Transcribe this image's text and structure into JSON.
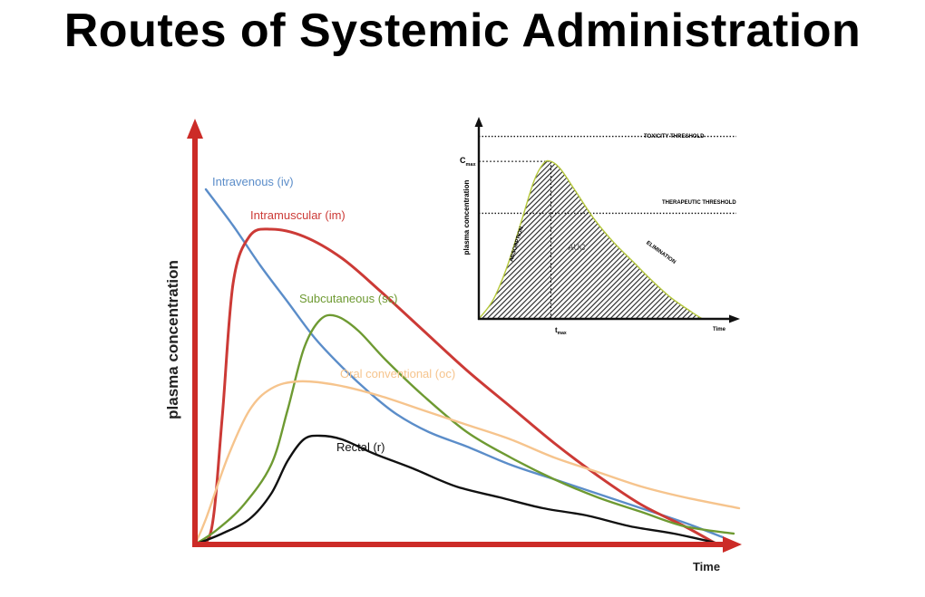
{
  "title": "Routes of Systemic Administration",
  "chart_data": [
    {
      "type": "line",
      "xlabel": "Time",
      "ylabel": "plasma concentration",
      "axis_color": "#cc2b27",
      "series": [
        {
          "name": "Intravenous (iv)",
          "color": "#5b8dc9",
          "points": [
            [
              0.02,
              0.98
            ],
            [
              0.07,
              0.88
            ],
            [
              0.12,
              0.77
            ],
            [
              0.17,
              0.67
            ],
            [
              0.22,
              0.57
            ],
            [
              0.27,
              0.49
            ],
            [
              0.32,
              0.42
            ],
            [
              0.37,
              0.36
            ],
            [
              0.43,
              0.31
            ],
            [
              0.5,
              0.27
            ],
            [
              0.58,
              0.22
            ],
            [
              0.66,
              0.18
            ],
            [
              0.74,
              0.14
            ],
            [
              0.82,
              0.1
            ],
            [
              0.9,
              0.06
            ],
            [
              0.97,
              0.02
            ]
          ]
        },
        {
          "name": "Intramuscular (im)",
          "color": "#cc3a36",
          "points": [
            [
              0.0,
              0.0
            ],
            [
              0.03,
              0.04
            ],
            [
              0.05,
              0.35
            ],
            [
              0.07,
              0.72
            ],
            [
              0.1,
              0.85
            ],
            [
              0.14,
              0.87
            ],
            [
              0.2,
              0.85
            ],
            [
              0.27,
              0.79
            ],
            [
              0.34,
              0.7
            ],
            [
              0.42,
              0.59
            ],
            [
              0.5,
              0.48
            ],
            [
              0.58,
              0.38
            ],
            [
              0.66,
              0.28
            ],
            [
              0.74,
              0.19
            ],
            [
              0.82,
              0.11
            ],
            [
              0.9,
              0.05
            ],
            [
              0.96,
              0.0
            ]
          ]
        },
        {
          "name": "Subcutaneous (sc)",
          "color": "#6e9a32",
          "points": [
            [
              0.0,
              0.0
            ],
            [
              0.04,
              0.04
            ],
            [
              0.09,
              0.11
            ],
            [
              0.14,
              0.22
            ],
            [
              0.17,
              0.37
            ],
            [
              0.2,
              0.54
            ],
            [
              0.23,
              0.62
            ],
            [
              0.26,
              0.63
            ],
            [
              0.3,
              0.59
            ],
            [
              0.35,
              0.51
            ],
            [
              0.42,
              0.41
            ],
            [
              0.5,
              0.31
            ],
            [
              0.58,
              0.24
            ],
            [
              0.66,
              0.18
            ],
            [
              0.74,
              0.13
            ],
            [
              0.82,
              0.09
            ],
            [
              0.9,
              0.05
            ],
            [
              0.99,
              0.03
            ]
          ]
        },
        {
          "name": "Oral conventional (oc)",
          "color": "#f6c48d",
          "points": [
            [
              0.0,
              0.0
            ],
            [
              0.02,
              0.07
            ],
            [
              0.06,
              0.24
            ],
            [
              0.1,
              0.37
            ],
            [
              0.14,
              0.43
            ],
            [
              0.19,
              0.45
            ],
            [
              0.26,
              0.44
            ],
            [
              0.34,
              0.41
            ],
            [
              0.42,
              0.37
            ],
            [
              0.5,
              0.33
            ],
            [
              0.58,
              0.29
            ],
            [
              0.66,
              0.24
            ],
            [
              0.74,
              0.2
            ],
            [
              0.82,
              0.16
            ],
            [
              0.9,
              0.13
            ],
            [
              1.0,
              0.1
            ]
          ]
        },
        {
          "name": "Rectal (r)",
          "color": "#111111",
          "points": [
            [
              0.0,
              0.0
            ],
            [
              0.05,
              0.03
            ],
            [
              0.1,
              0.07
            ],
            [
              0.14,
              0.14
            ],
            [
              0.17,
              0.23
            ],
            [
              0.2,
              0.29
            ],
            [
              0.23,
              0.3
            ],
            [
              0.27,
              0.29
            ],
            [
              0.33,
              0.25
            ],
            [
              0.4,
              0.21
            ],
            [
              0.48,
              0.16
            ],
            [
              0.56,
              0.13
            ],
            [
              0.64,
              0.1
            ],
            [
              0.72,
              0.08
            ],
            [
              0.8,
              0.05
            ],
            [
              0.88,
              0.03
            ],
            [
              0.97,
              0.0
            ]
          ]
        }
      ]
    },
    {
      "type": "area",
      "xlabel": "Time",
      "ylabel": "plasma concentration",
      "xtick_label": "t_max",
      "ytick_label": "C_max",
      "thresholds": [
        {
          "name": "TOXICITY THRESHOLD",
          "y": 0.95
        },
        {
          "name": "THERAPEUTIC THRESHOLD",
          "y": 0.55
        }
      ],
      "annotations": [
        "ABSORPTION",
        "AUC",
        "ELIMINATION"
      ],
      "tmax": 0.3,
      "cmax": 0.82,
      "fill_pattern": "diagonal-hatch",
      "curve_color": "#b5c83a",
      "curve": [
        [
          0.0,
          0.0
        ],
        [
          0.06,
          0.1
        ],
        [
          0.12,
          0.28
        ],
        [
          0.18,
          0.52
        ],
        [
          0.23,
          0.72
        ],
        [
          0.27,
          0.81
        ],
        [
          0.3,
          0.82
        ],
        [
          0.34,
          0.78
        ],
        [
          0.4,
          0.67
        ],
        [
          0.48,
          0.52
        ],
        [
          0.56,
          0.4
        ],
        [
          0.64,
          0.3
        ],
        [
          0.72,
          0.2
        ],
        [
          0.8,
          0.11
        ],
        [
          0.88,
          0.04
        ],
        [
          0.93,
          0.0
        ]
      ]
    }
  ]
}
